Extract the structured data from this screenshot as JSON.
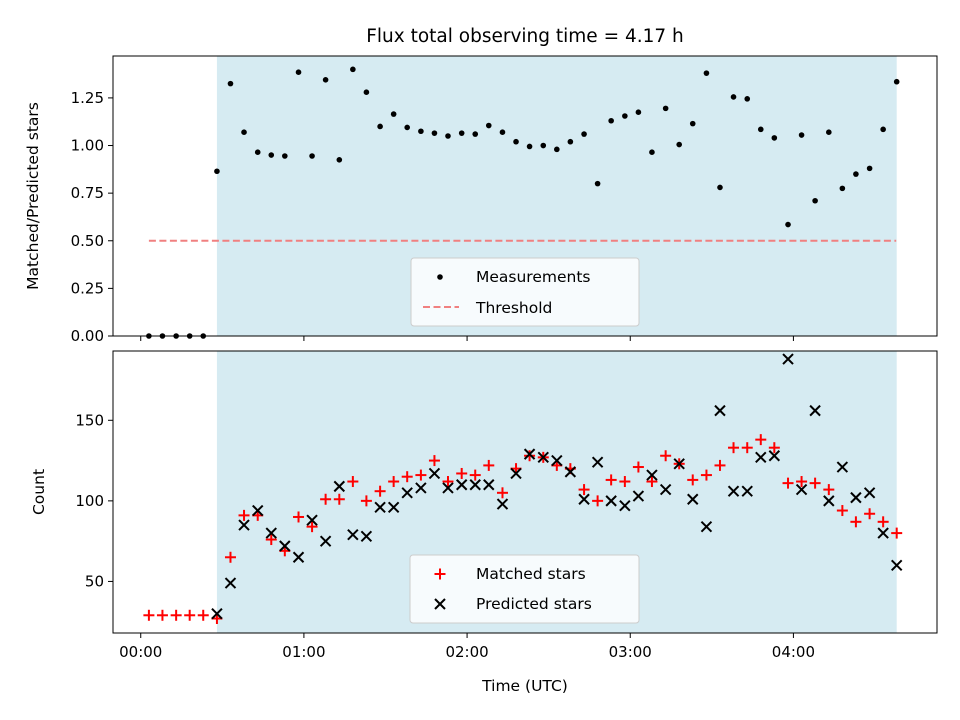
{
  "title": "Flux total observing time = 4.17 h",
  "colors": {
    "shade": "#add8e6",
    "threshold": "#f08080",
    "matched": "#ff0000",
    "predicted": "#000000",
    "measurement": "#000000"
  },
  "shade_range_hours": [
    0.467,
    4.633
  ],
  "chart_data": [
    {
      "type": "scatter",
      "ylabel": "Matched/Predicted stars",
      "xlim": [
        -0.17,
        4.88
      ],
      "ylim": [
        0,
        1.47
      ],
      "yticks": [
        0.0,
        0.25,
        0.5,
        0.75,
        1.0,
        1.25
      ],
      "ytick_labels": [
        "0.00",
        "0.25",
        "0.50",
        "0.75",
        "1.00",
        "1.25"
      ],
      "threshold": {
        "name": "Threshold",
        "value": 0.5,
        "x_range": [
          0.05,
          4.63
        ]
      },
      "legend": [
        "Measurements",
        "Threshold"
      ],
      "legend_loc": "lower center",
      "series": [
        {
          "name": "Measurements",
          "x": [
            0.05,
            0.133,
            0.217,
            0.3,
            0.383,
            0.467,
            0.55,
            0.633,
            0.717,
            0.8,
            0.883,
            0.967,
            1.05,
            1.133,
            1.217,
            1.3,
            1.383,
            1.467,
            1.55,
            1.633,
            1.717,
            1.8,
            1.883,
            1.967,
            2.05,
            2.133,
            2.217,
            2.3,
            2.383,
            2.467,
            2.55,
            2.633,
            2.717,
            2.8,
            2.883,
            2.967,
            3.05,
            3.133,
            3.217,
            3.3,
            3.383,
            3.467,
            3.55,
            3.633,
            3.717,
            3.8,
            3.883,
            3.967,
            4.05,
            4.133,
            4.217,
            4.3,
            4.383,
            4.467,
            4.55,
            4.633
          ],
          "y": [
            0,
            0,
            0,
            0,
            0,
            0.865,
            1.325,
            1.07,
            0.965,
            0.95,
            0.945,
            1.385,
            0.945,
            1.345,
            0.925,
            1.4,
            1.28,
            1.1,
            1.165,
            1.095,
            1.075,
            1.065,
            1.05,
            1.065,
            1.06,
            1.105,
            1.07,
            1.02,
            0.995,
            1.0,
            0.98,
            1.02,
            1.06,
            0.8,
            1.13,
            1.155,
            1.175,
            0.965,
            1.195,
            1.005,
            1.115,
            1.38,
            0.78,
            1.255,
            1.245,
            1.085,
            1.04,
            0.585,
            1.055,
            0.71,
            1.07,
            0.775,
            0.85,
            0.88,
            1.085,
            1.335
          ]
        }
      ]
    },
    {
      "type": "scatter",
      "xlabel": "Time (UTC)",
      "ylabel": "Count",
      "xlim": [
        -0.17,
        4.88
      ],
      "ylim": [
        18,
        193
      ],
      "xticks": [
        0,
        1,
        2,
        3,
        4
      ],
      "xtick_labels": [
        "00:00",
        "01:00",
        "02:00",
        "03:00",
        "04:00"
      ],
      "yticks": [
        50,
        100,
        150
      ],
      "ytick_labels": [
        "50",
        "100",
        "150"
      ],
      "legend": [
        "Matched stars",
        "Predicted stars"
      ],
      "legend_loc": "lower center",
      "series": [
        {
          "name": "Matched stars",
          "marker": "+",
          "x": [
            0.05,
            0.133,
            0.217,
            0.3,
            0.383,
            0.467,
            0.55,
            0.633,
            0.717,
            0.8,
            0.883,
            0.967,
            1.05,
            1.133,
            1.217,
            1.3,
            1.383,
            1.467,
            1.55,
            1.633,
            1.717,
            1.8,
            1.883,
            1.967,
            2.05,
            2.133,
            2.217,
            2.3,
            2.383,
            2.467,
            2.55,
            2.633,
            2.717,
            2.8,
            2.883,
            2.967,
            3.05,
            3.133,
            3.217,
            3.3,
            3.383,
            3.467,
            3.55,
            3.633,
            3.717,
            3.8,
            3.883,
            3.967,
            4.05,
            4.133,
            4.217,
            4.3,
            4.383,
            4.467,
            4.55,
            4.633
          ],
          "y": [
            29,
            29,
            29,
            29,
            29,
            27,
            65,
            91,
            91,
            76,
            69,
            90,
            84,
            101,
            101,
            112,
            100,
            106,
            112,
            115,
            116,
            125,
            112,
            117,
            116,
            122,
            105,
            120,
            128,
            127,
            122,
            120,
            107,
            100,
            113,
            112,
            121,
            112,
            128,
            123,
            113,
            116,
            122,
            133,
            133,
            138,
            133,
            111,
            112,
            111,
            107,
            94,
            87,
            92,
            87,
            80
          ]
        },
        {
          "name": "Predicted stars",
          "marker": "x",
          "x": [
            0.467,
            0.55,
            0.633,
            0.717,
            0.8,
            0.883,
            0.967,
            1.05,
            1.133,
            1.217,
            1.3,
            1.383,
            1.467,
            1.55,
            1.633,
            1.717,
            1.8,
            1.883,
            1.967,
            2.05,
            2.133,
            2.217,
            2.3,
            2.383,
            2.467,
            2.55,
            2.633,
            2.717,
            2.8,
            2.883,
            2.967,
            3.05,
            3.133,
            3.217,
            3.3,
            3.383,
            3.467,
            3.55,
            3.633,
            3.717,
            3.8,
            3.883,
            3.967,
            4.05,
            4.133,
            4.217,
            4.3,
            4.383,
            4.467,
            4.55,
            4.633
          ],
          "y": [
            30,
            49,
            85,
            94,
            80,
            72,
            65,
            88,
            75,
            109,
            79,
            78,
            96,
            96,
            105,
            108,
            117,
            108,
            110,
            110,
            110,
            98,
            117,
            129,
            127,
            125,
            118,
            101,
            124,
            100,
            97,
            103,
            116,
            107,
            123,
            101,
            84,
            156,
            106,
            106,
            127,
            128,
            188,
            107,
            156,
            100,
            121,
            102,
            105,
            80,
            60
          ]
        }
      ]
    }
  ]
}
